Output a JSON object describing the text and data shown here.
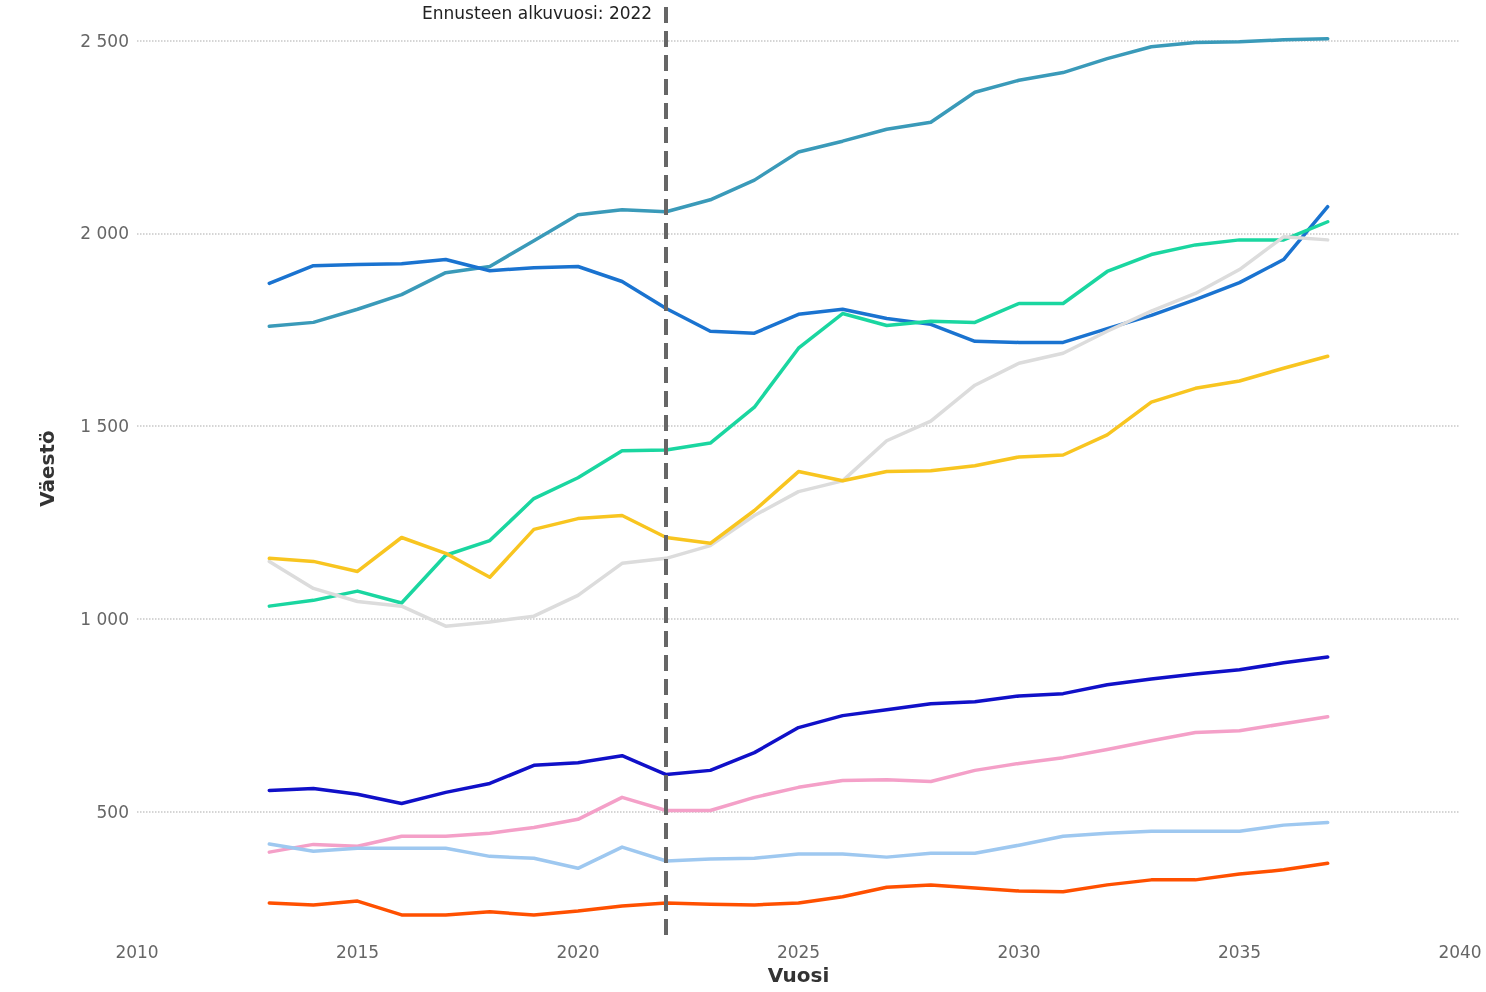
{
  "chart_data": {
    "type": "line",
    "xlabel": "Vuosi",
    "ylabel": "Väestö",
    "x": [
      2013,
      2014,
      2015,
      2016,
      2017,
      2018,
      2019,
      2020,
      2021,
      2022,
      2023,
      2024,
      2025,
      2026,
      2027,
      2028,
      2029,
      2030,
      2031,
      2032,
      2033,
      2034,
      2035,
      2036,
      2037
    ],
    "series": [
      {
        "color": "#3a9ab9",
        "values": [
          1759,
          1769,
          1803,
          1841,
          1898,
          1914,
          1981,
          2048,
          2061,
          2056,
          2087,
          2138,
          2211,
          2239,
          2270,
          2288,
          2366,
          2397,
          2417,
          2453,
          2484,
          2495,
          2497,
          2502,
          2505
        ]
      },
      {
        "color": "#1a73d0",
        "values": [
          1870,
          1916,
          1919,
          1921,
          1932,
          1903,
          1911,
          1914,
          1875,
          1805,
          1746,
          1741,
          1790,
          1803,
          1779,
          1764,
          1720,
          1717,
          1717,
          1753,
          1787,
          1828,
          1872,
          1932,
          2069
        ]
      },
      {
        "color": "#1ad6a0",
        "values": [
          1033,
          1048,
          1072,
          1041,
          1165,
          1203,
          1312,
          1366,
          1436,
          1438,
          1456,
          1549,
          1702,
          1792,
          1761,
          1772,
          1769,
          1818,
          1818,
          1901,
          1945,
          1970,
          1983,
          1983,
          2030
        ]
      },
      {
        "color": "#dcdcdc",
        "values": [
          1149,
          1079,
          1045,
          1033,
          981,
          992,
          1007,
          1061,
          1144,
          1157,
          1190,
          1268,
          1330,
          1358,
          1462,
          1513,
          1606,
          1663,
          1689,
          1746,
          1798,
          1844,
          1906,
          1991,
          1983
        ]
      },
      {
        "color": "#f8c520",
        "values": [
          1157,
          1149,
          1123,
          1211,
          1170,
          1108,
          1232,
          1260,
          1268,
          1211,
          1196,
          1281,
          1382,
          1358,
          1382,
          1384,
          1397,
          1420,
          1425,
          1477,
          1562,
          1598,
          1617,
          1650,
          1681
        ]
      },
      {
        "color": "#1010c8",
        "values": [
          555,
          560,
          545,
          521,
          550,
          573,
          620,
          627,
          645,
          596,
          607,
          653,
          718,
          749,
          764,
          780,
          785,
          800,
          806,
          829,
          844,
          857,
          868,
          886,
          901
        ]
      },
      {
        "color": "#f4a0c8",
        "values": [
          395,
          415,
          410,
          436,
          436,
          444,
          459,
          480,
          537,
          503,
          503,
          537,
          563,
          581,
          583,
          578,
          607,
          625,
          640,
          661,
          684,
          705,
          710,
          728,
          746
        ]
      },
      {
        "color": "#9ec8f0",
        "values": [
          416,
          397,
          405,
          405,
          405,
          384,
          379,
          353,
          408,
          372,
          377,
          379,
          390,
          390,
          382,
          392,
          392,
          413,
          436,
          444,
          449,
          449,
          449,
          465,
          472
        ]
      },
      {
        "color": "#ff5000",
        "values": [
          263,
          258,
          268,
          232,
          232,
          240,
          232,
          242,
          255,
          263,
          260,
          258,
          263,
          279,
          304,
          310,
          302,
          294,
          292,
          310,
          323,
          323,
          338,
          349,
          366
        ]
      }
    ],
    "xlim": [
      2010,
      2040
    ],
    "xticks": [
      2010,
      2015,
      2020,
      2025,
      2030,
      2035,
      2040
    ],
    "ylim": [
      180,
      2600
    ],
    "yticks": [
      {
        "value": 500,
        "label": "500"
      },
      {
        "value": 1000,
        "label": "1 000"
      },
      {
        "value": 1500,
        "label": "1 500"
      },
      {
        "value": 2000,
        "label": "2 000"
      },
      {
        "value": 2500,
        "label": "2 500"
      }
    ],
    "grid": "y",
    "marker": "none",
    "line_style": "solid",
    "ref_lines": [
      {
        "axis": "x",
        "value": 2022,
        "label": "Ennusteen alkuvuosi: 2022",
        "color": "#666666",
        "line_style": "dashed"
      }
    ]
  }
}
